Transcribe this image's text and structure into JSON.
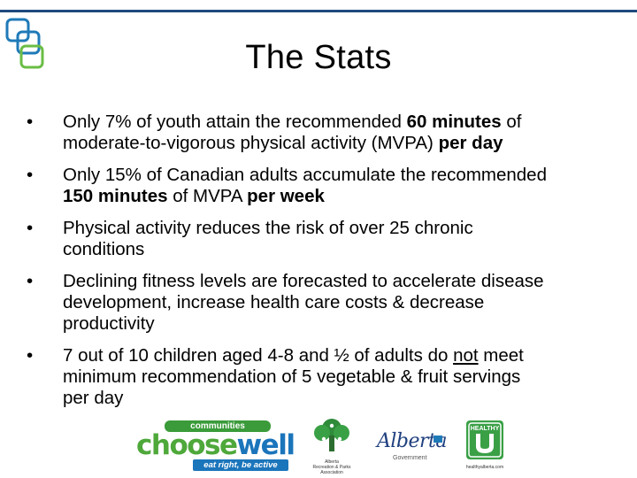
{
  "slide": {
    "title": "The Stats",
    "bullet_glyph": "•",
    "colors": {
      "accent_line": "#1f497d",
      "logo_blue": "#1f7ab8",
      "logo_green": "#6abd45"
    }
  },
  "bullets": [
    {
      "lines": [
        [
          "Only 7% of youth attain the recommended ",
          {
            "b": "60 minutes"
          },
          " of"
        ],
        [
          "moderate-to-vigorous physical activity (MVPA) ",
          {
            "b": "per day"
          }
        ]
      ]
    },
    {
      "lines": [
        [
          "Only 15% of Canadian adults accumulate the recommended"
        ],
        [
          {
            "b": "150 minutes"
          },
          " of MVPA ",
          {
            "b": "per week"
          }
        ]
      ]
    },
    {
      "lines": [
        [
          "Physical activity reduces the risk of over 25 chronic"
        ],
        [
          "conditions"
        ]
      ]
    },
    {
      "lines": [
        [
          "Declining fitness levels are forecasted to accelerate disease"
        ],
        [
          "development, increase health care costs & decrease"
        ],
        [
          "productivity"
        ]
      ]
    },
    {
      "lines": [
        [
          "7 out of 10 children aged 4-8 and ½ of adults do ",
          {
            "u": "not"
          },
          " meet"
        ],
        [
          "minimum recommendation of 5 vegetable & fruit servings"
        ],
        [
          "per day"
        ]
      ]
    }
  ],
  "logos": {
    "choosewell": {
      "top": "communities",
      "main_a": "choose",
      "main_b": "well",
      "tagline": "eat right, be active",
      "icon": "choosewell-logo"
    },
    "arpa": {
      "line1": "Alberta",
      "line2": "Recreation & Parks",
      "line3": "Association",
      "icon": "tree-people-icon"
    },
    "alberta": {
      "name": "Alberta",
      "sub": "Government",
      "icon": "alberta-logo"
    },
    "healthy_u": {
      "label": "HEALTHY",
      "url": "healthyalberta.com",
      "icon": "healthy-u-logo"
    }
  }
}
